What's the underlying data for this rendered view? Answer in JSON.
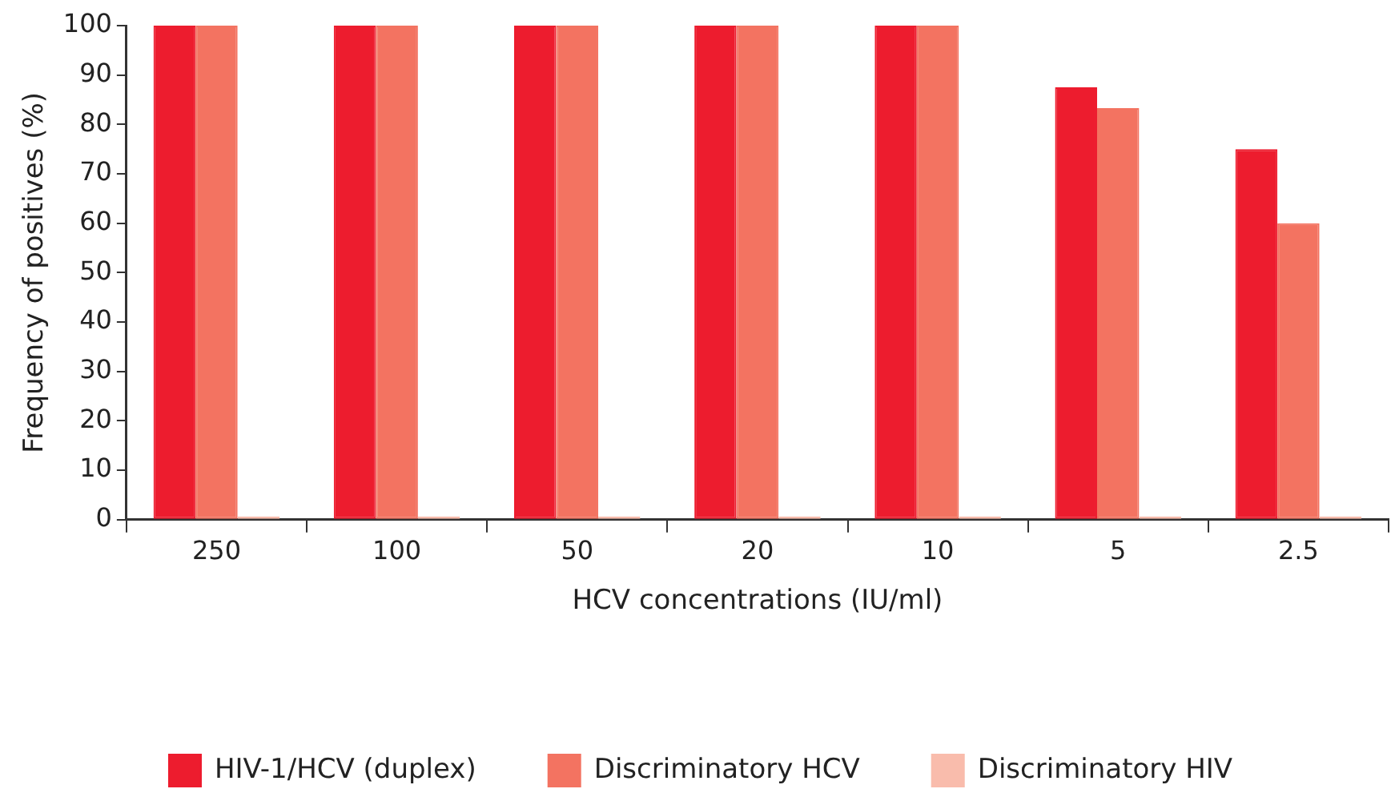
{
  "chart_data": {
    "type": "bar",
    "xlabel": "HCV concentrations (IU/ml)",
    "ylabel": "Frequency of positives (%)",
    "categories": [
      "250",
      "100",
      "50",
      "20",
      "10",
      "5",
      "2.5"
    ],
    "series": [
      {
        "name": "HIV-1/HCV (duplex)",
        "color": "#ed1c2e",
        "values": [
          100,
          100,
          100,
          100,
          100,
          87.5,
          75
        ]
      },
      {
        "name": "Discriminatory HCV",
        "color": "#f37361",
        "values": [
          100,
          100,
          100,
          100,
          100,
          83.3,
          60
        ]
      },
      {
        "name": "Discriminatory HIV",
        "color": "#f9bcac",
        "values": [
          0,
          0,
          0,
          0,
          0,
          0,
          0
        ]
      }
    ],
    "ylim": [
      0,
      100
    ],
    "yticks": [
      0,
      10,
      20,
      30,
      40,
      50,
      60,
      70,
      80,
      90,
      100
    ],
    "grid": false,
    "legend": "bottom"
  }
}
